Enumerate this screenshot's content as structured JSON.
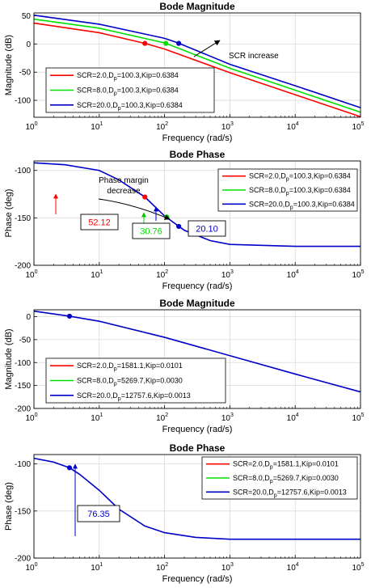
{
  "chart_data": [
    {
      "type": "line",
      "title": "Bode Magnitude",
      "xlabel": "Frequency (rad/s)",
      "ylabel": "Magnitude (dB)",
      "xscale": "log",
      "xlim": [
        1,
        100000
      ],
      "ylim": [
        -130,
        55
      ],
      "yticks": [
        50,
        0,
        -50,
        -100
      ],
      "grid": true,
      "legend": {
        "placement": "lower-left",
        "entries": [
          {
            "prefix": "SCR=2.0,D",
            "sub": "p",
            "suffix": "=100.3,Kip=0.6384",
            "color": "#ff0000"
          },
          {
            "prefix": "SCR=8.0,D",
            "sub": "p",
            "suffix": "=100.3,Kip=0.6384",
            "color": "#00e000"
          },
          {
            "prefix": "SCR=20.0,D",
            "sub": "p",
            "suffix": "=100.3,Kip=0.6384",
            "color": "#0000c8"
          }
        ]
      },
      "series": [
        {
          "color": "#ff0000",
          "x": [
            1,
            10,
            50,
            100,
            1000,
            10000,
            100000
          ],
          "y": [
            37,
            20,
            1,
            -9,
            -51,
            -90,
            -129
          ]
        },
        {
          "color": "#00e000",
          "x": [
            1,
            10,
            100,
            1000,
            10000,
            100000
          ],
          "y": [
            44,
            28,
            2,
            -43,
            -82,
            -121
          ]
        },
        {
          "color": "#0000c8",
          "x": [
            1,
            10,
            100,
            160,
            1000,
            10000,
            100000
          ],
          "y": [
            51,
            35,
            10,
            2,
            -36,
            -74,
            -113
          ]
        }
      ],
      "markers": [
        {
          "x": 50,
          "y": 1,
          "color": "#ff0000"
        },
        {
          "x": 105,
          "y": 1,
          "color": "#00e000"
        },
        {
          "x": 165,
          "y": 1,
          "color": "#0000c8"
        }
      ],
      "annotations": [
        {
          "text": "SCR increase",
          "x": 2500,
          "y": -20
        }
      ]
    },
    {
      "type": "line",
      "title": "Bode Phase",
      "xlabel": "Frequency (rad/s)",
      "ylabel": "Phase (deg)",
      "xscale": "log",
      "xlim": [
        1,
        100000
      ],
      "ylim": [
        -200,
        -90
      ],
      "yticks": [
        -100,
        -150,
        -200
      ],
      "grid": true,
      "legend": {
        "placement": "top-right",
        "entries": [
          {
            "prefix": "SCR=2.0,D",
            "sub": "p",
            "suffix": "=100.3,Kip=0.6384",
            "color": "#ff0000"
          },
          {
            "prefix": "SCR=8.0,D",
            "sub": "p",
            "suffix": "=100.3,Kip=0.6384",
            "color": "#00e000"
          },
          {
            "prefix": "SCR=20.0,D",
            "sub": "p",
            "suffix": "=100.3,Kip=0.6384",
            "color": "#0000c8"
          }
        ]
      },
      "series": [
        {
          "color": "#0000c8",
          "x": [
            1,
            3,
            10,
            20,
            50,
            100,
            200,
            500,
            1000,
            10000,
            100000
          ],
          "y": [
            -92,
            -94,
            -100,
            -110,
            -128,
            -148,
            -163,
            -174,
            -178,
            -180,
            -180
          ]
        }
      ],
      "markers": [
        {
          "x": 50,
          "y": -128,
          "color": "#ff0000"
        },
        {
          "x": 108,
          "y": -149,
          "color": "#00e000"
        },
        {
          "x": 165,
          "y": -159,
          "color": "#0000c8"
        }
      ],
      "value_boxes": [
        {
          "text": "52.12",
          "color": "#ff0000"
        },
        {
          "text": "30.76",
          "color": "#00e000"
        },
        {
          "text": "20.10",
          "color": "#0000c8"
        }
      ],
      "annotations": [
        {
          "text": "Phase margin",
          "x": 100,
          "y": -110
        },
        {
          "text": "decrease",
          "x": 100,
          "y": -122
        }
      ]
    },
    {
      "type": "line",
      "title": "Bode Magnitude",
      "xlabel": "Frequency (rad/s)",
      "ylabel": "Magnitude (dB)",
      "xscale": "log",
      "xlim": [
        1,
        100000
      ],
      "ylim": [
        -200,
        15
      ],
      "yticks": [
        0,
        -50,
        -100,
        -150,
        -200
      ],
      "grid": true,
      "legend": {
        "placement": "lower-left",
        "entries": [
          {
            "prefix": "SCR=2.0,D",
            "sub": "p",
            "suffix": "=1581.1,Kip=0.0101",
            "color": "#ff0000"
          },
          {
            "prefix": "SCR=8.0,D",
            "sub": "p",
            "suffix": "=5269.7,Kip=0.0030",
            "color": "#00e000"
          },
          {
            "prefix": "SCR=20.0,D",
            "sub": "p",
            "suffix": "=12757.6,Kip=0.0013",
            "color": "#0000c8"
          }
        ]
      },
      "series": [
        {
          "color": "#0000c8",
          "x": [
            1,
            3.5,
            10,
            100,
            1000,
            10000,
            100000
          ],
          "y": [
            12,
            1,
            -10,
            -45,
            -85,
            -125,
            -164
          ]
        }
      ],
      "markers": [
        {
          "x": 3.5,
          "y": 1,
          "color": "#0000c8"
        }
      ]
    },
    {
      "type": "line",
      "title": "Bode Phase",
      "xlabel": "Frequency (rad/s)",
      "ylabel": "Phase (deg)",
      "xscale": "log",
      "xlim": [
        1,
        100000
      ],
      "ylim": [
        -200,
        -90
      ],
      "yticks": [
        -100,
        -150,
        -200
      ],
      "grid": true,
      "legend": {
        "placement": "top-right",
        "entries": [
          {
            "prefix": "SCR=2.0,D",
            "sub": "p",
            "suffix": "=1581.1,Kip=0.0101",
            "color": "#ff0000"
          },
          {
            "prefix": "SCR=8.0,D",
            "sub": "p",
            "suffix": "=5269.7,Kip=0.0030",
            "color": "#00e000"
          },
          {
            "prefix": "SCR=20.0,D",
            "sub": "p",
            "suffix": "=12757.6,Kip=0.0013",
            "color": "#0000c8"
          }
        ]
      },
      "series": [
        {
          "color": "#0000c8",
          "x": [
            1,
            2,
            3.5,
            5,
            10,
            20,
            50,
            100,
            300,
            1000,
            10000,
            100000
          ],
          "y": [
            -94,
            -98,
            -104,
            -111,
            -128,
            -148,
            -166,
            -173,
            -178,
            -180,
            -180,
            -180
          ]
        }
      ],
      "markers": [
        {
          "x": 3.5,
          "y": -104,
          "color": "#0000c8"
        }
      ],
      "value_boxes": [
        {
          "text": "76.35",
          "color": "#0000c8"
        }
      ]
    }
  ]
}
